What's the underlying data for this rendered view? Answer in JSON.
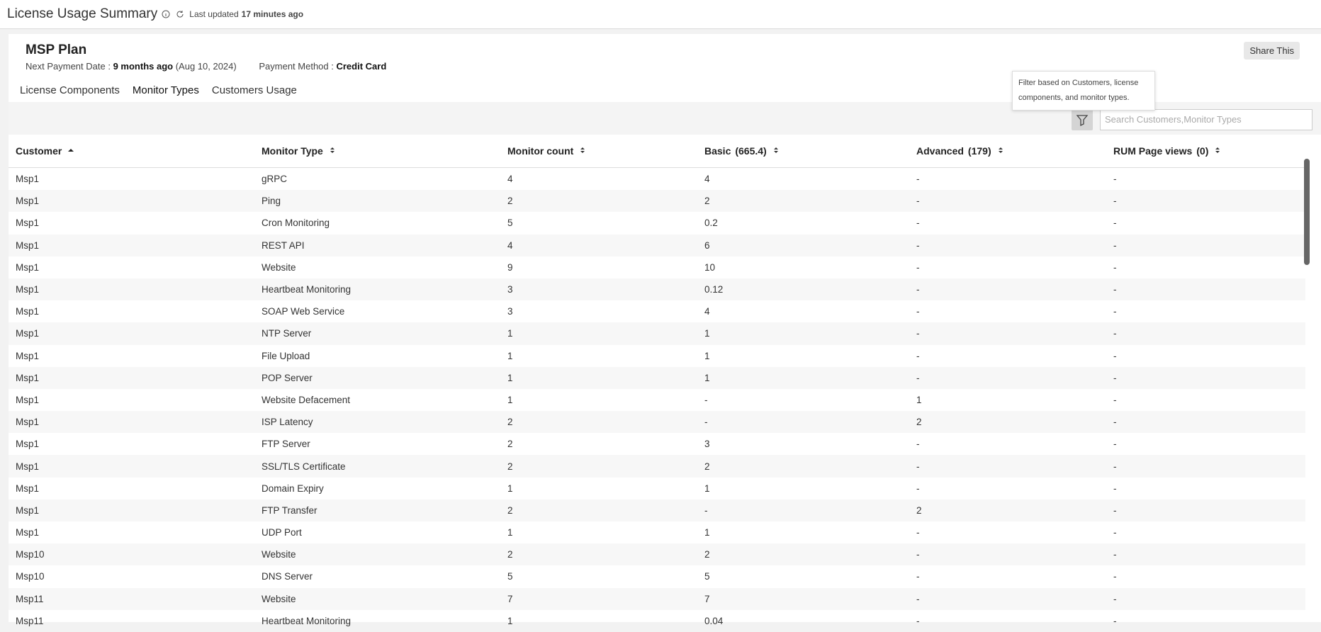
{
  "header": {
    "title": "License Usage Summary",
    "last_updated_label": "Last updated",
    "last_updated_value": "17 minutes ago"
  },
  "plan": {
    "name": "MSP Plan",
    "next_payment_label": "Next Payment Date :",
    "next_payment_relative": "9 months ago",
    "next_payment_date": "(Aug 10, 2024)",
    "payment_method_label": "Payment Method :",
    "payment_method": "Credit Card",
    "share_button": "Share This"
  },
  "tabs": [
    "License Components",
    "Monitor Types",
    "Customers Usage"
  ],
  "tooltip": "Filter based on Customers, license components, and monitor types.",
  "search_placeholder": "Search Customers,Monitor Types",
  "table": {
    "columns": [
      {
        "label": "Customer"
      },
      {
        "label": "Monitor Type"
      },
      {
        "label": "Monitor count"
      },
      {
        "label": "Basic",
        "total": "(665.4)"
      },
      {
        "label": "Advanced",
        "total": "(179)"
      },
      {
        "label": "RUM Page views",
        "total": "(0)"
      }
    ],
    "rows": [
      [
        "Msp1",
        "gRPC",
        "4",
        "4",
        "-",
        "-"
      ],
      [
        "Msp1",
        "Ping",
        "2",
        "2",
        "-",
        "-"
      ],
      [
        "Msp1",
        "Cron Monitoring",
        "5",
        "0.2",
        "-",
        "-"
      ],
      [
        "Msp1",
        "REST API",
        "4",
        "6",
        "-",
        "-"
      ],
      [
        "Msp1",
        "Website",
        "9",
        "10",
        "-",
        "-"
      ],
      [
        "Msp1",
        "Heartbeat Monitoring",
        "3",
        "0.12",
        "-",
        "-"
      ],
      [
        "Msp1",
        "SOAP Web Service",
        "3",
        "4",
        "-",
        "-"
      ],
      [
        "Msp1",
        "NTP Server",
        "1",
        "1",
        "-",
        "-"
      ],
      [
        "Msp1",
        "File Upload",
        "1",
        "1",
        "-",
        "-"
      ],
      [
        "Msp1",
        "POP Server",
        "1",
        "1",
        "-",
        "-"
      ],
      [
        "Msp1",
        "Website Defacement",
        "1",
        "-",
        "1",
        "-"
      ],
      [
        "Msp1",
        "ISP Latency",
        "2",
        "-",
        "2",
        "-"
      ],
      [
        "Msp1",
        "FTP Server",
        "2",
        "3",
        "-",
        "-"
      ],
      [
        "Msp1",
        "SSL/TLS Certificate",
        "2",
        "2",
        "-",
        "-"
      ],
      [
        "Msp1",
        "Domain Expiry",
        "1",
        "1",
        "-",
        "-"
      ],
      [
        "Msp1",
        "FTP Transfer",
        "2",
        "-",
        "2",
        "-"
      ],
      [
        "Msp1",
        "UDP Port",
        "1",
        "1",
        "-",
        "-"
      ],
      [
        "Msp10",
        "Website",
        "2",
        "2",
        "-",
        "-"
      ],
      [
        "Msp10",
        "DNS Server",
        "5",
        "5",
        "-",
        "-"
      ],
      [
        "Msp11",
        "Website",
        "7",
        "7",
        "-",
        "-"
      ],
      [
        "Msp11",
        "Heartbeat Monitoring",
        "1",
        "0.04",
        "-",
        "-"
      ]
    ]
  }
}
